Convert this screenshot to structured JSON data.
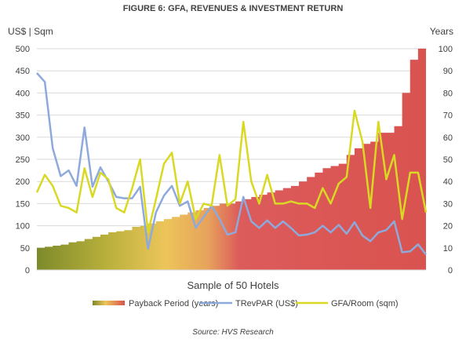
{
  "chart_data": {
    "type": "area",
    "title": "FIGURE 6: GFA, REVENUES & INVESTMENT RETURN",
    "left_axis_unit": "US$ | Sqm",
    "right_axis_unit": "Years",
    "xlabel": "Sample of 50 Hotels",
    "source": "Source: HVS Research",
    "left_ylim": [
      0,
      500
    ],
    "right_ylim": [
      0,
      100
    ],
    "left_ticks": [
      "0",
      "50",
      "100",
      "150",
      "200",
      "250",
      "300",
      "350",
      "400",
      "450",
      "500"
    ],
    "right_ticks": [
      "0",
      "10",
      "20",
      "30",
      "40",
      "50",
      "60",
      "70",
      "80",
      "90",
      "100"
    ],
    "legend_position": "bottom",
    "series": [
      {
        "name": "Payback Period (years)",
        "axis": "right",
        "style": "area",
        "values": [
          10,
          10.5,
          11,
          11.5,
          12.5,
          13,
          14,
          15,
          16,
          17,
          17.5,
          18,
          19.5,
          20,
          21,
          22,
          23,
          24,
          25,
          26,
          27,
          28,
          29,
          30,
          30,
          31,
          32,
          33,
          34,
          35,
          36,
          37,
          38,
          40,
          42,
          44,
          46,
          47,
          48,
          52,
          55,
          57,
          58,
          62,
          62,
          65,
          80,
          95,
          100,
          100
        ]
      },
      {
        "name": "TRevPAR (US$)",
        "axis": "left",
        "style": "line",
        "color": "#8ea9db",
        "values": [
          445,
          425,
          275,
          212,
          225,
          190,
          322,
          188,
          232,
          200,
          165,
          162,
          162,
          188,
          48,
          130,
          168,
          190,
          145,
          155,
          95,
          120,
          145,
          115,
          80,
          85,
          165,
          110,
          95,
          112,
          95,
          110,
          95,
          78,
          80,
          85,
          100,
          85,
          102,
          82,
          108,
          78,
          65,
          85,
          90,
          110,
          40,
          42,
          58,
          35
        ]
      },
      {
        "name": "GFA/Room (sqm)",
        "axis": "right",
        "style": "line",
        "color": "#d9d923",
        "values": [
          35,
          43,
          38,
          29,
          28,
          26,
          46,
          33,
          44,
          41,
          28,
          26,
          37,
          50,
          17,
          32,
          48,
          53,
          30,
          40,
          23,
          30,
          29,
          52,
          29,
          32,
          67,
          40,
          30,
          43,
          30,
          30,
          31,
          30,
          30,
          28,
          37,
          30,
          39,
          42,
          72,
          58,
          28,
          67,
          41,
          52,
          23,
          44,
          44,
          26
        ]
      }
    ]
  }
}
